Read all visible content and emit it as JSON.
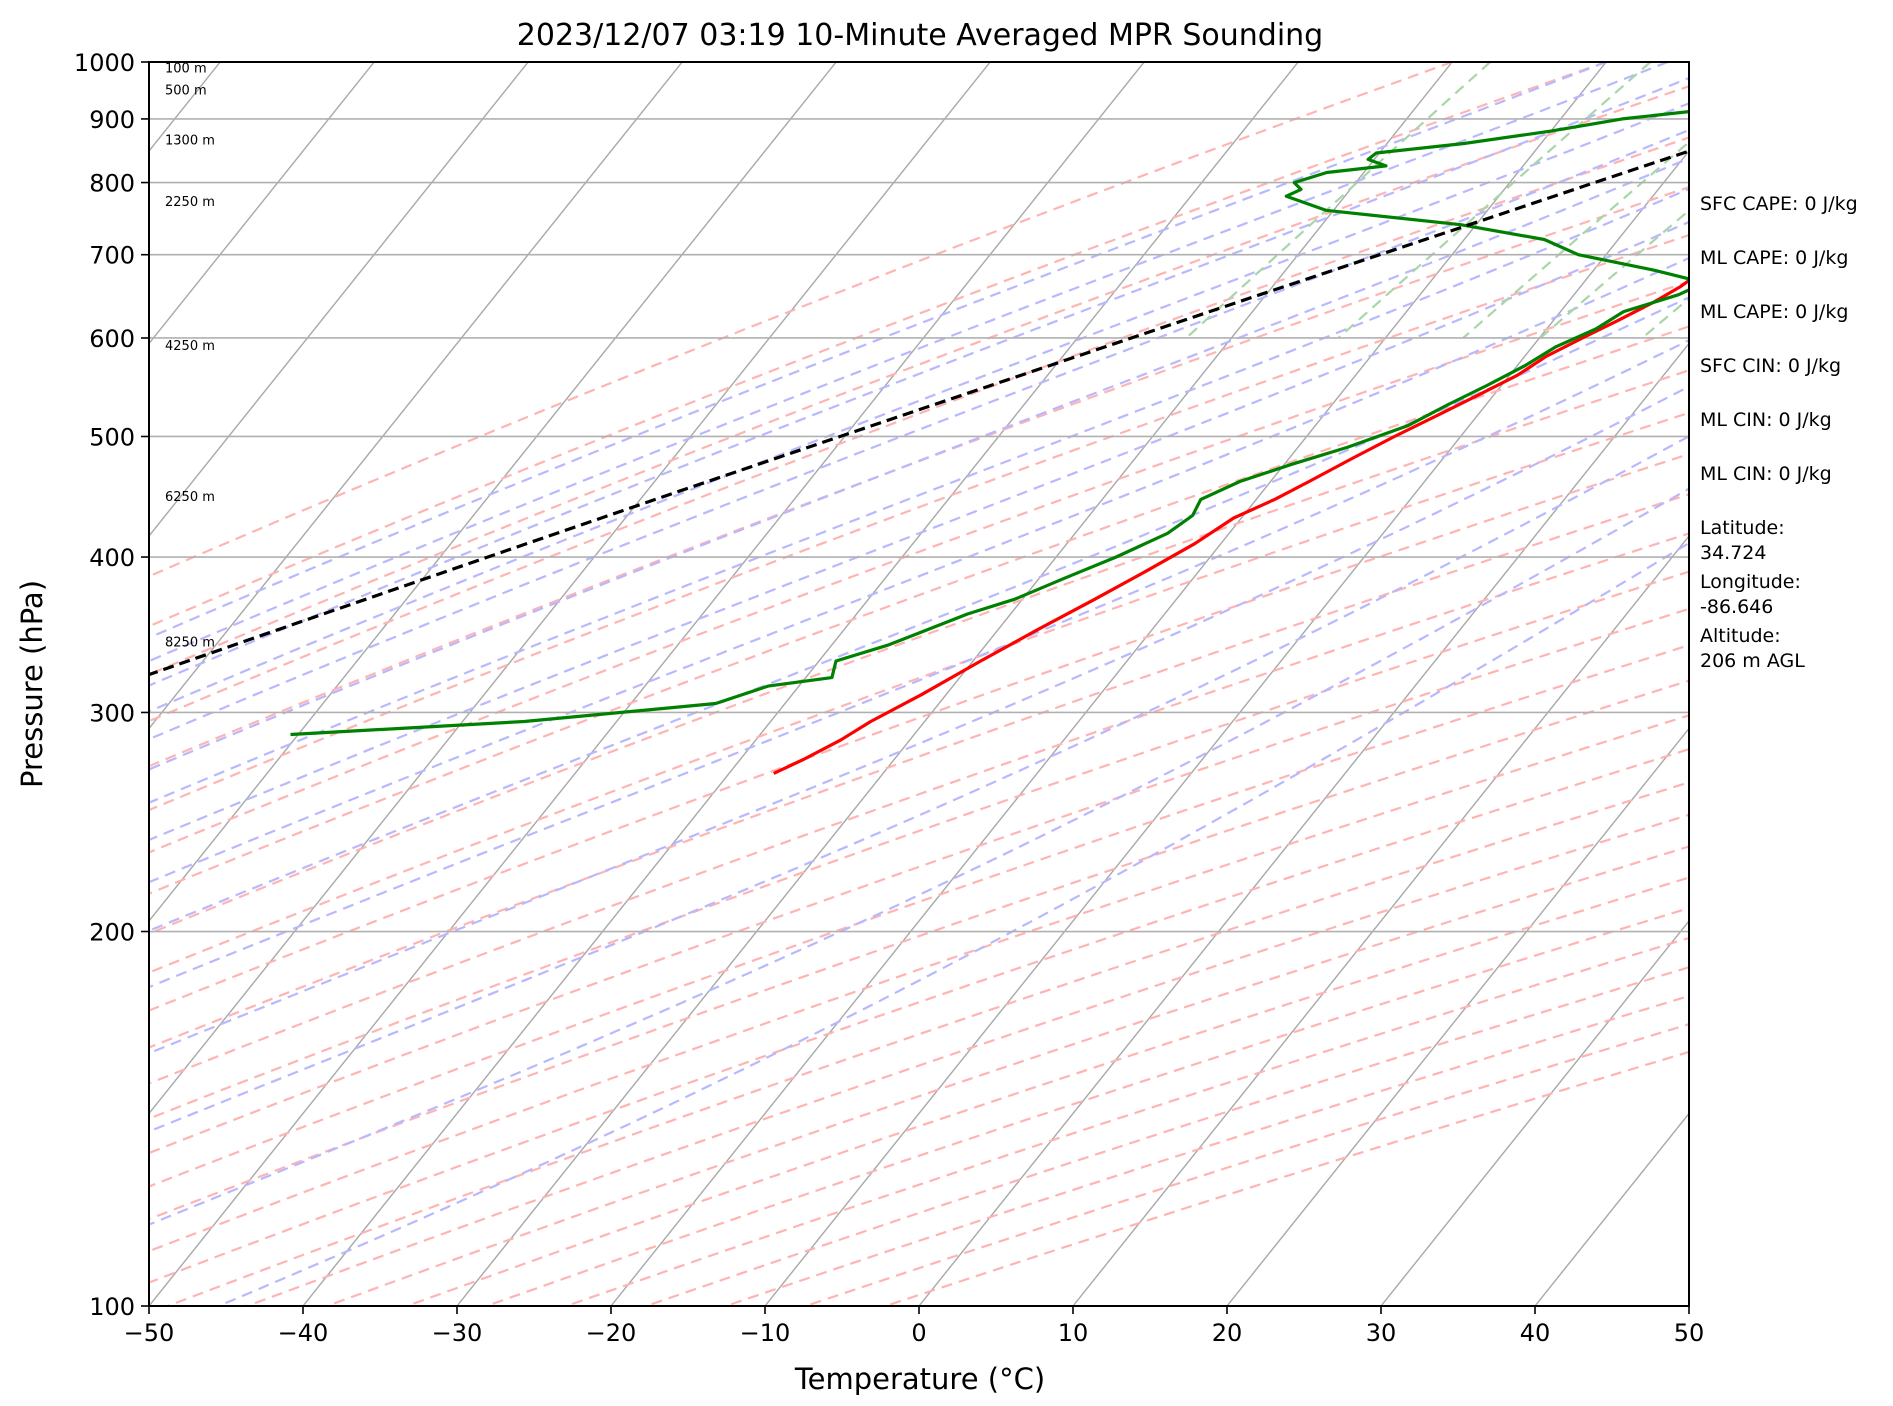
{
  "chart_data": {
    "type": "line",
    "subtype": "skew-t log-p sounding",
    "title": "2023/12/07 03:19 10-Minute Averaged MPR Sounding",
    "xlabel": "Temperature (°C)",
    "ylabel": "Pressure (hPa)",
    "xlim": [
      -50,
      50
    ],
    "ylim": [
      1000,
      100
    ],
    "y_scale": "log",
    "x_ticks": [
      "−50",
      "−40",
      "−30",
      "−20",
      "−10",
      "0",
      "10",
      "20",
      "30",
      "40",
      "50"
    ],
    "y_ticks": [
      "100",
      "200",
      "300",
      "400",
      "500",
      "600",
      "700",
      "800",
      "900",
      "1000"
    ],
    "horizontal_grid_pressures": [
      200,
      300,
      400,
      500,
      600,
      700,
      800,
      900
    ],
    "legend": "none",
    "series": [
      {
        "kind": "temperature",
        "color": "#ff0000",
        "points": [
          {
            "p": 1000,
            "t": 5.0
          },
          {
            "p": 990,
            "t": 5.2
          },
          {
            "p": 975,
            "t": 4.7
          },
          {
            "p": 955,
            "t": 4.3
          },
          {
            "p": 935,
            "t": 4.4
          },
          {
            "p": 915,
            "t": 5.3
          },
          {
            "p": 895,
            "t": 6.2
          },
          {
            "p": 880,
            "t": 7.0
          },
          {
            "p": 860,
            "t": 7.2
          },
          {
            "p": 840,
            "t": 6.9
          },
          {
            "p": 820,
            "t": 6.1
          },
          {
            "p": 800,
            "t": 5.4
          },
          {
            "p": 780,
            "t": 4.3
          },
          {
            "p": 760,
            "t": 2.8
          },
          {
            "p": 740,
            "t": 1.2
          },
          {
            "p": 720,
            "t": -0.3
          },
          {
            "p": 700,
            "t": -1.5
          },
          {
            "p": 680,
            "t": -2.9
          },
          {
            "p": 660,
            "t": -3.5
          },
          {
            "p": 640,
            "t": -4.5
          },
          {
            "p": 620,
            "t": -5.8
          },
          {
            "p": 600,
            "t": -7.2
          },
          {
            "p": 580,
            "t": -8.6
          },
          {
            "p": 560,
            "t": -9.5
          },
          {
            "p": 540,
            "t": -11.0
          },
          {
            "p": 520,
            "t": -12.6
          },
          {
            "p": 500,
            "t": -14.3
          },
          {
            "p": 480,
            "t": -15.9
          },
          {
            "p": 460,
            "t": -17.5
          },
          {
            "p": 445,
            "t": -18.8
          },
          {
            "p": 430,
            "t": -20.5
          },
          {
            "p": 410,
            "t": -21.7
          },
          {
            "p": 390,
            "t": -23.4
          },
          {
            "p": 370,
            "t": -25.3
          },
          {
            "p": 350,
            "t": -27.4
          },
          {
            "p": 330,
            "t": -29.5
          },
          {
            "p": 310,
            "t": -31.6
          },
          {
            "p": 295,
            "t": -33.5
          },
          {
            "p": 285,
            "t": -34.5
          },
          {
            "p": 275,
            "t": -35.9
          },
          {
            "p": 268,
            "t": -37.1
          }
        ]
      },
      {
        "kind": "dewpoint",
        "color": "#008000",
        "points": [
          {
            "p": 1000,
            "t": -2.1
          },
          {
            "p": 990,
            "t": -3.0
          },
          {
            "p": 975,
            "t": -4.0
          },
          {
            "p": 960,
            "t": -4.2
          },
          {
            "p": 945,
            "t": -5.5
          },
          {
            "p": 920,
            "t": -9.5
          },
          {
            "p": 900,
            "t": -16.0
          },
          {
            "p": 880,
            "t": -20.0
          },
          {
            "p": 860,
            "t": -25.0
          },
          {
            "p": 845,
            "t": -30.2
          },
          {
            "p": 835,
            "t": -30.4
          },
          {
            "p": 825,
            "t": -28.9
          },
          {
            "p": 815,
            "t": -32.4
          },
          {
            "p": 800,
            "t": -34.0
          },
          {
            "p": 790,
            "t": -33.2
          },
          {
            "p": 780,
            "t": -33.8
          },
          {
            "p": 760,
            "t": -30.5
          },
          {
            "p": 740,
            "t": -21.0
          },
          {
            "p": 720,
            "t": -14.8
          },
          {
            "p": 700,
            "t": -11.8
          },
          {
            "p": 680,
            "t": -6.0
          },
          {
            "p": 670,
            "t": -3.5
          },
          {
            "p": 660,
            "t": -2.5
          },
          {
            "p": 650,
            "t": -3.2
          },
          {
            "p": 630,
            "t": -5.9
          },
          {
            "p": 610,
            "t": -6.8
          },
          {
            "p": 590,
            "t": -8.5
          },
          {
            "p": 570,
            "t": -9.5
          },
          {
            "p": 550,
            "t": -10.9
          },
          {
            "p": 530,
            "t": -12.5
          },
          {
            "p": 510,
            "t": -14.0
          },
          {
            "p": 490,
            "t": -16.8
          },
          {
            "p": 475,
            "t": -19.5
          },
          {
            "p": 460,
            "t": -22.0
          },
          {
            "p": 445,
            "t": -23.6
          },
          {
            "p": 432,
            "t": -23.3
          },
          {
            "p": 418,
            "t": -24.0
          },
          {
            "p": 400,
            "t": -26.1
          },
          {
            "p": 385,
            "t": -28.3
          },
          {
            "p": 370,
            "t": -30.5
          },
          {
            "p": 360,
            "t": -32.8
          },
          {
            "p": 340,
            "t": -36.3
          },
          {
            "p": 330,
            "t": -38.9
          },
          {
            "p": 320,
            "t": -38.3
          },
          {
            "p": 315,
            "t": -42.0
          },
          {
            "p": 305,
            "t": -44.5
          },
          {
            "p": 295,
            "t": -56.0
          },
          {
            "p": 288,
            "t": -70.5
          }
        ]
      },
      {
        "kind": "parcel",
        "color": "#000000",
        "dash": true,
        "points": [
          {
            "p": 1000,
            "t": 4.2
          },
          {
            "p": 975,
            "t": 0.9
          },
          {
            "p": 950,
            "t": -1.5
          },
          {
            "p": 925,
            "t": -3.6
          },
          {
            "p": 900,
            "t": -5.5
          },
          {
            "p": 850,
            "t": -9.8
          },
          {
            "p": 800,
            "t": -14.5
          },
          {
            "p": 750,
            "t": -19.4
          },
          {
            "p": 700,
            "t": -24.7
          },
          {
            "p": 650,
            "t": -30.4
          },
          {
            "p": 600,
            "t": -36.5
          },
          {
            "p": 550,
            "t": -43.1
          },
          {
            "p": 500,
            "t": -50.3
          },
          {
            "p": 450,
            "t": -58.2
          },
          {
            "p": 400,
            "t": -66.9
          },
          {
            "p": 350,
            "t": -76.7
          },
          {
            "p": 300,
            "t": -87.9
          },
          {
            "p": 270,
            "t": -95.4
          }
        ]
      }
    ],
    "height_markers": [
      {
        "label": "100 m",
        "p": 990
      },
      {
        "label": "500 m",
        "p": 950
      },
      {
        "label": "1300 m",
        "p": 866
      },
      {
        "label": "2250 m",
        "p": 773
      },
      {
        "label": "4250 m",
        "p": 592
      },
      {
        "label": "6250 m",
        "p": 448
      },
      {
        "label": "8250 m",
        "p": 342
      }
    ],
    "background_colors": {
      "isotherm": "#a8a8a8",
      "dry_adiabat": "#ffb4b4",
      "moist_adiabat": "#b8b8ff",
      "mixing_ratio": "#a9d6a9",
      "isobar_grid": "#b0b0b0"
    }
  },
  "info": [
    "SFC CAPE: 0 J/kg",
    "ML CAPE: 0 J/kg",
    "ML CAPE: 0 J/kg",
    "SFC CIN: 0 J/kg",
    "ML CIN: 0 J/kg",
    "ML CIN: 0 J/kg",
    "Latitude:\n34.724",
    "Longitude:\n-86.646",
    "Altitude:\n206 m AGL"
  ]
}
